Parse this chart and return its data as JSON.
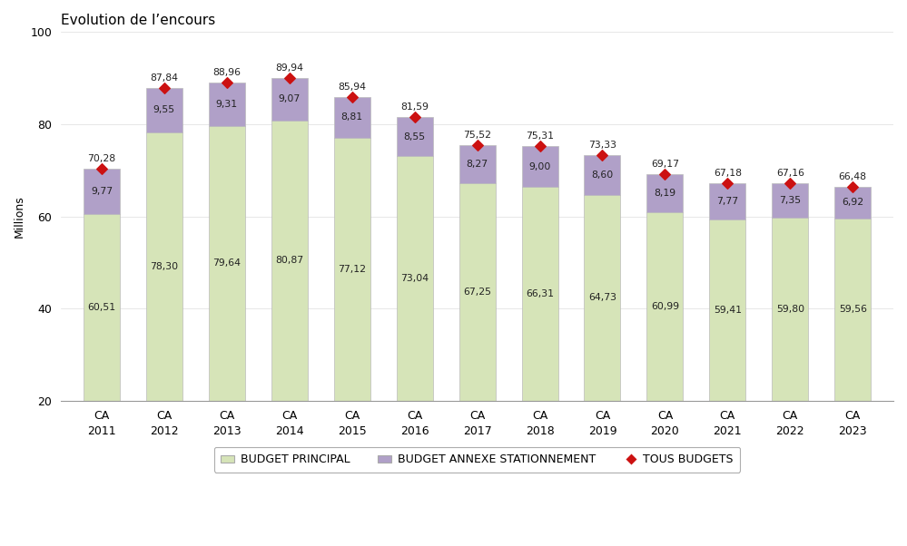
{
  "title": "Evolution de l’encours",
  "ylabel": "Millions",
  "ylim": [
    20,
    100
  ],
  "yticks": [
    20,
    40,
    60,
    80,
    100
  ],
  "categories": [
    "CA\n2011",
    "CA\n2012",
    "CA\n2013",
    "CA\n2014",
    "CA\n2015",
    "CA\n2016",
    "CA\n2017",
    "CA\n2018",
    "CA\n2019",
    "CA\n2020",
    "CA\n2021",
    "CA\n2022",
    "CA\n2023"
  ],
  "budget_principal": [
    60.51,
    78.3,
    79.64,
    80.87,
    77.12,
    73.04,
    67.25,
    66.31,
    64.73,
    60.99,
    59.41,
    59.8,
    59.56
  ],
  "budget_annexe": [
    9.77,
    9.55,
    9.31,
    9.07,
    8.81,
    8.55,
    8.27,
    9.0,
    8.6,
    8.19,
    7.77,
    7.35,
    6.92
  ],
  "tous_budgets": [
    70.28,
    87.84,
    88.96,
    89.94,
    85.94,
    81.59,
    75.52,
    75.31,
    73.33,
    69.17,
    67.18,
    67.16,
    66.48
  ],
  "color_principal": "#d6e4b8",
  "color_annexe": "#b0a0c8",
  "color_marker": "#cc1111",
  "background_color": "#ffffff",
  "legend_border_color": "#999999",
  "ymin": 20
}
